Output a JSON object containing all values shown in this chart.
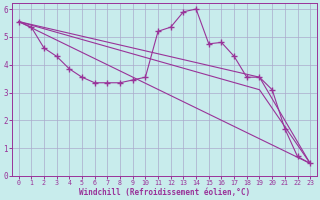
{
  "title": "",
  "xlabel": "Windchill (Refroidissement éolien,°C)",
  "ylabel": "",
  "bg_color": "#c8ecec",
  "grid_color": "#aaaacc",
  "line_color": "#993399",
  "xlim": [
    -0.5,
    23.5
  ],
  "ylim": [
    0,
    6.2
  ],
  "xticks": [
    0,
    1,
    2,
    3,
    4,
    5,
    6,
    7,
    8,
    9,
    10,
    11,
    12,
    13,
    14,
    15,
    16,
    17,
    18,
    19,
    20,
    21,
    22,
    23
  ],
  "yticks": [
    0,
    1,
    2,
    3,
    4,
    5,
    6
  ],
  "series": [
    {
      "x": [
        0,
        1,
        2,
        3,
        4,
        5,
        6,
        7,
        8,
        9,
        10,
        11,
        12,
        13,
        14,
        15,
        16,
        17,
        18,
        19,
        20,
        21,
        22,
        23
      ],
      "y": [
        5.55,
        5.35,
        4.6,
        4.3,
        3.85,
        3.55,
        3.35,
        3.35,
        3.35,
        3.45,
        3.55,
        5.2,
        5.35,
        5.9,
        6.0,
        4.75,
        4.8,
        4.3,
        3.55,
        3.55,
        3.1,
        1.7,
        0.7,
        0.45
      ],
      "marker": true
    },
    {
      "x": [
        0,
        23
      ],
      "y": [
        5.55,
        0.45
      ],
      "marker": false
    },
    {
      "x": [
        0,
        19,
        23
      ],
      "y": [
        5.55,
        3.55,
        0.45
      ],
      "marker": false
    },
    {
      "x": [
        0,
        19,
        23
      ],
      "y": [
        5.55,
        3.1,
        0.45
      ],
      "marker": false
    }
  ]
}
